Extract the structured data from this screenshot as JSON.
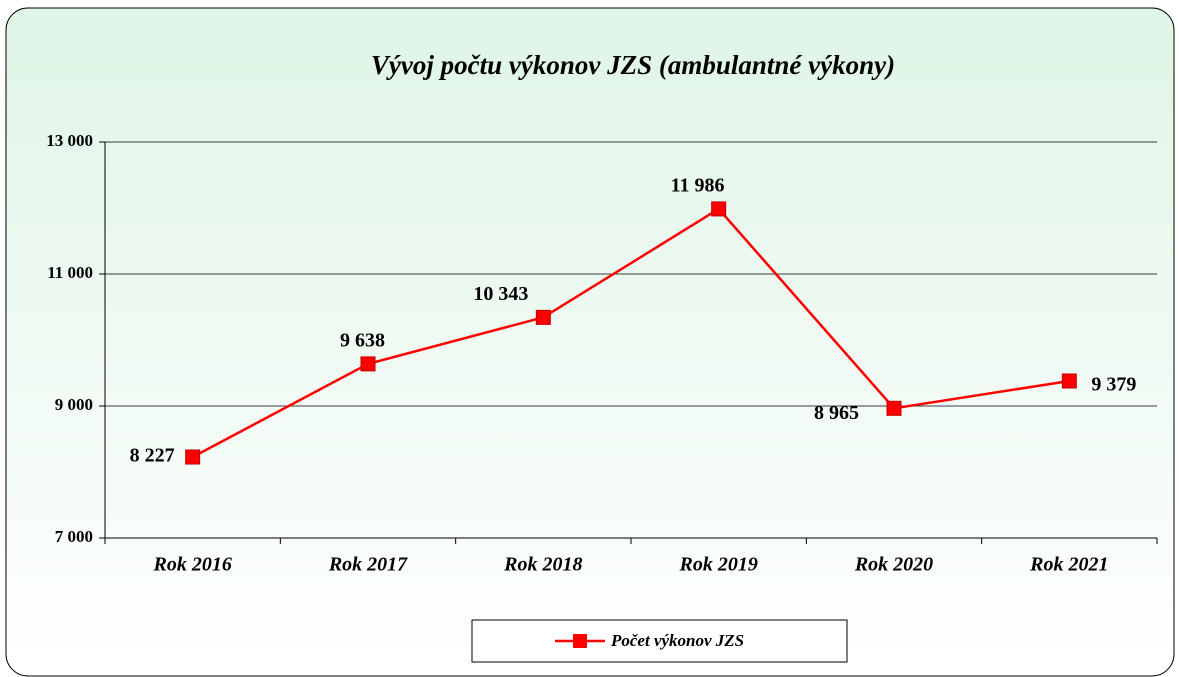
{
  "chart_data": {
    "type": "line",
    "title": "Vývoj počtu výkonov JZS (ambulantné výkony)",
    "categories": [
      "Rok 2016",
      "Rok 2017",
      "Rok 2018",
      "Rok 2019",
      "Rok 2020",
      "Rok 2021"
    ],
    "series": [
      {
        "name": "Počet výkonov JZS",
        "color": "#ff0000",
        "values": [
          8227,
          9638,
          10343,
          11986,
          8965,
          9379
        ],
        "value_labels": [
          "8 227",
          "9 638",
          "10 343",
          "11 986",
          "8 965",
          "9 379"
        ]
      }
    ],
    "ylim": [
      7000,
      13000
    ],
    "yticks": [
      {
        "value": 7000,
        "label": "7 000"
      },
      {
        "value": 9000,
        "label": "9 000"
      },
      {
        "value": 11000,
        "label": "11 000"
      },
      {
        "value": 13000,
        "label": "13 000"
      }
    ],
    "grid": true,
    "legend": "bottom"
  }
}
